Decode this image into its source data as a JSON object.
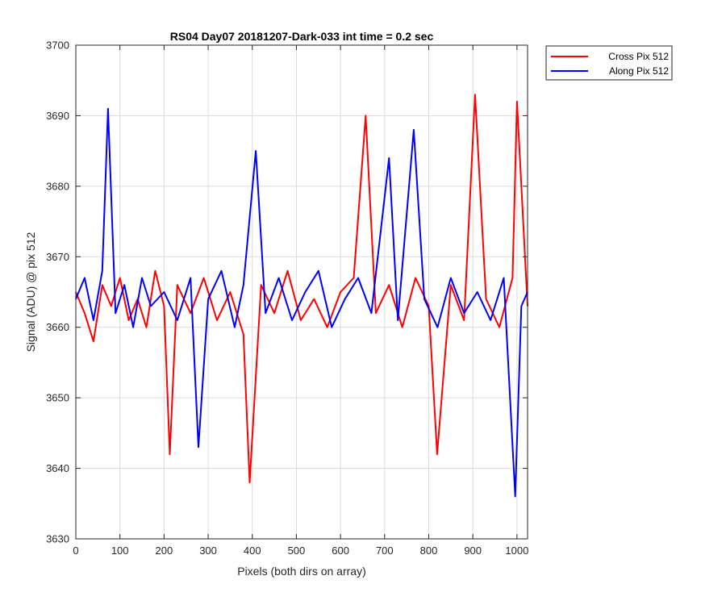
{
  "chart_data": {
    "type": "line",
    "title": "RS04 Day07 20181207-Dark-033 int time = 0.2 sec",
    "xlabel": "Pixels (both dirs on array)",
    "ylabel": "Signal (ADU) @ pix 512",
    "xlim": [
      0,
      1024
    ],
    "ylim": [
      3630,
      3700
    ],
    "xticks": [
      0,
      100,
      200,
      300,
      400,
      500,
      600,
      700,
      800,
      900,
      1000
    ],
    "yticks": [
      3630,
      3640,
      3650,
      3660,
      3670,
      3680,
      3690,
      3700
    ],
    "grid": true,
    "legend_position": "outside-top-right",
    "series": [
      {
        "name": "Cross Pix 512",
        "color": "#ff0000",
        "x": [
          0,
          20,
          40,
          60,
          80,
          100,
          120,
          140,
          160,
          180,
          200,
          213,
          230,
          260,
          290,
          320,
          350,
          380,
          394,
          420,
          450,
          480,
          510,
          540,
          570,
          600,
          630,
          657,
          680,
          710,
          740,
          770,
          800,
          819,
          850,
          880,
          905,
          930,
          960,
          990,
          1000,
          1024
        ],
        "y": [
          3665,
          3662,
          3658,
          3666,
          3663,
          3667,
          3661,
          3664,
          3660,
          3668,
          3663,
          3642,
          3666,
          3662,
          3667,
          3661,
          3665,
          3659,
          3638,
          3666,
          3662,
          3668,
          3661,
          3664,
          3660,
          3665,
          3667,
          3690,
          3662,
          3666,
          3660,
          3667,
          3663,
          3642,
          3666,
          3661,
          3693,
          3664,
          3660,
          3667,
          3692,
          3663
        ]
      },
      {
        "name": "Along Pix 512",
        "color": "#0000ff",
        "x": [
          0,
          20,
          40,
          60,
          73,
          90,
          110,
          130,
          150,
          170,
          200,
          230,
          260,
          278,
          300,
          330,
          360,
          380,
          408,
          430,
          460,
          490,
          520,
          550,
          580,
          610,
          640,
          670,
          710,
          730,
          766,
          790,
          820,
          850,
          880,
          910,
          940,
          970,
          996,
          1010,
          1024
        ],
        "y": [
          3664,
          3667,
          3661,
          3668,
          3691,
          3662,
          3666,
          3660,
          3667,
          3663,
          3665,
          3661,
          3667,
          3643,
          3664,
          3668,
          3660,
          3666,
          3685,
          3662,
          3667,
          3661,
          3665,
          3668,
          3660,
          3664,
          3667,
          3662,
          3684,
          3661,
          3688,
          3664,
          3660,
          3667,
          3662,
          3665,
          3661,
          3667,
          3636,
          3663,
          3665
        ]
      }
    ]
  }
}
